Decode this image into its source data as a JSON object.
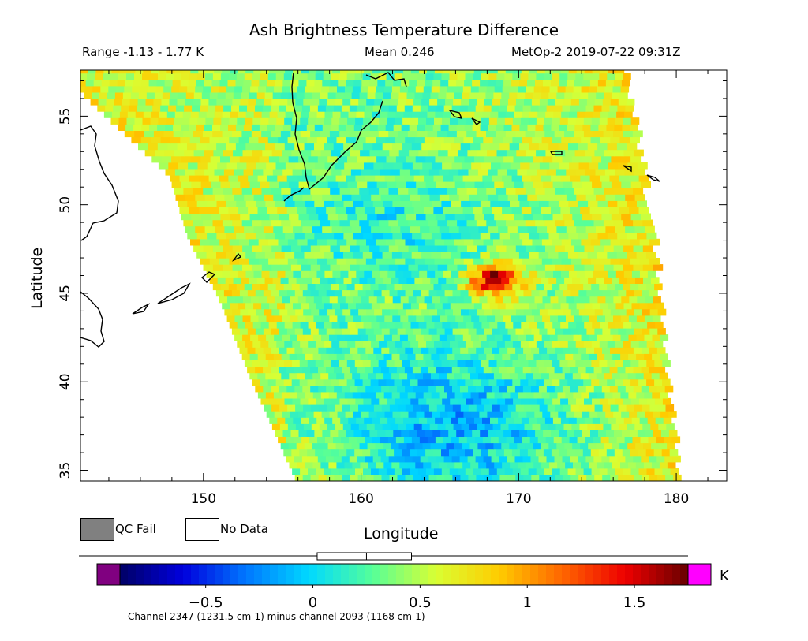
{
  "header": {
    "title": "Ash Brightness Temperature Difference",
    "range": "Range -1.13 - 1.77 K",
    "mean": "Mean 0.246",
    "satellite": "MetOp-2 2019-07-22 09:31Z"
  },
  "legend": {
    "qc_fail": "QC Fail",
    "no_data": "No Data",
    "qc_fail_color": "#808080",
    "no_data_color": "#ffffff"
  },
  "footer": "Channel 2347 (1231.5 cm-1) minus channel 2093 (1168 cm-1)",
  "chart_data": {
    "type": "heatmap",
    "title": "Ash Brightness Temperature Difference",
    "xlabel": "Longitude",
    "ylabel": "Latitude",
    "xlim": [
      142.2,
      183.2
    ],
    "ylim": [
      34.4,
      57.6
    ],
    "x_ticks": [
      150,
      160,
      170,
      180
    ],
    "y_ticks": [
      35,
      40,
      45,
      50,
      55
    ],
    "value_range": [
      -1.13,
      1.77
    ],
    "mean": 0.246,
    "colorbar": {
      "unit": "K",
      "ticks": [
        -0.5,
        0,
        0.5,
        1,
        1.5
      ],
      "tick_labels": [
        "−0.5",
        "0",
        "0.5",
        "1",
        "1.5"
      ],
      "vmin": -0.9,
      "vmax": 1.75,
      "colors": [
        "#000066",
        "#0000dd",
        "#0077ff",
        "#00d9ff",
        "#55ff99",
        "#d9ff33",
        "#ffcc00",
        "#ff6600",
        "#ee0000",
        "#660000"
      ],
      "under_color": "#800080",
      "over_color": "#ff00ff",
      "boxplot": {
        "min": -1.13,
        "q1": 0.02,
        "median": 0.25,
        "q3": 0.46,
        "max": 1.77
      }
    },
    "hotspot": {
      "lon": 168.5,
      "lat": 45.8,
      "value": 1.55
    },
    "swath_edges": {
      "west": [
        [
          147.8,
          51.5
        ],
        [
          149.0,
          48.0
        ],
        [
          151.0,
          44.5
        ],
        [
          153.0,
          40.0
        ],
        [
          154.5,
          37.0
        ],
        [
          155.8,
          34.4
        ]
      ],
      "east": [
        [
          176.6,
          57.6
        ],
        [
          177.6,
          52.0
        ],
        [
          178.5,
          46.5
        ],
        [
          179.2,
          41.0
        ],
        [
          180.0,
          34.4
        ]
      ],
      "north": 57.6,
      "south": 34.4
    },
    "grid": false
  }
}
